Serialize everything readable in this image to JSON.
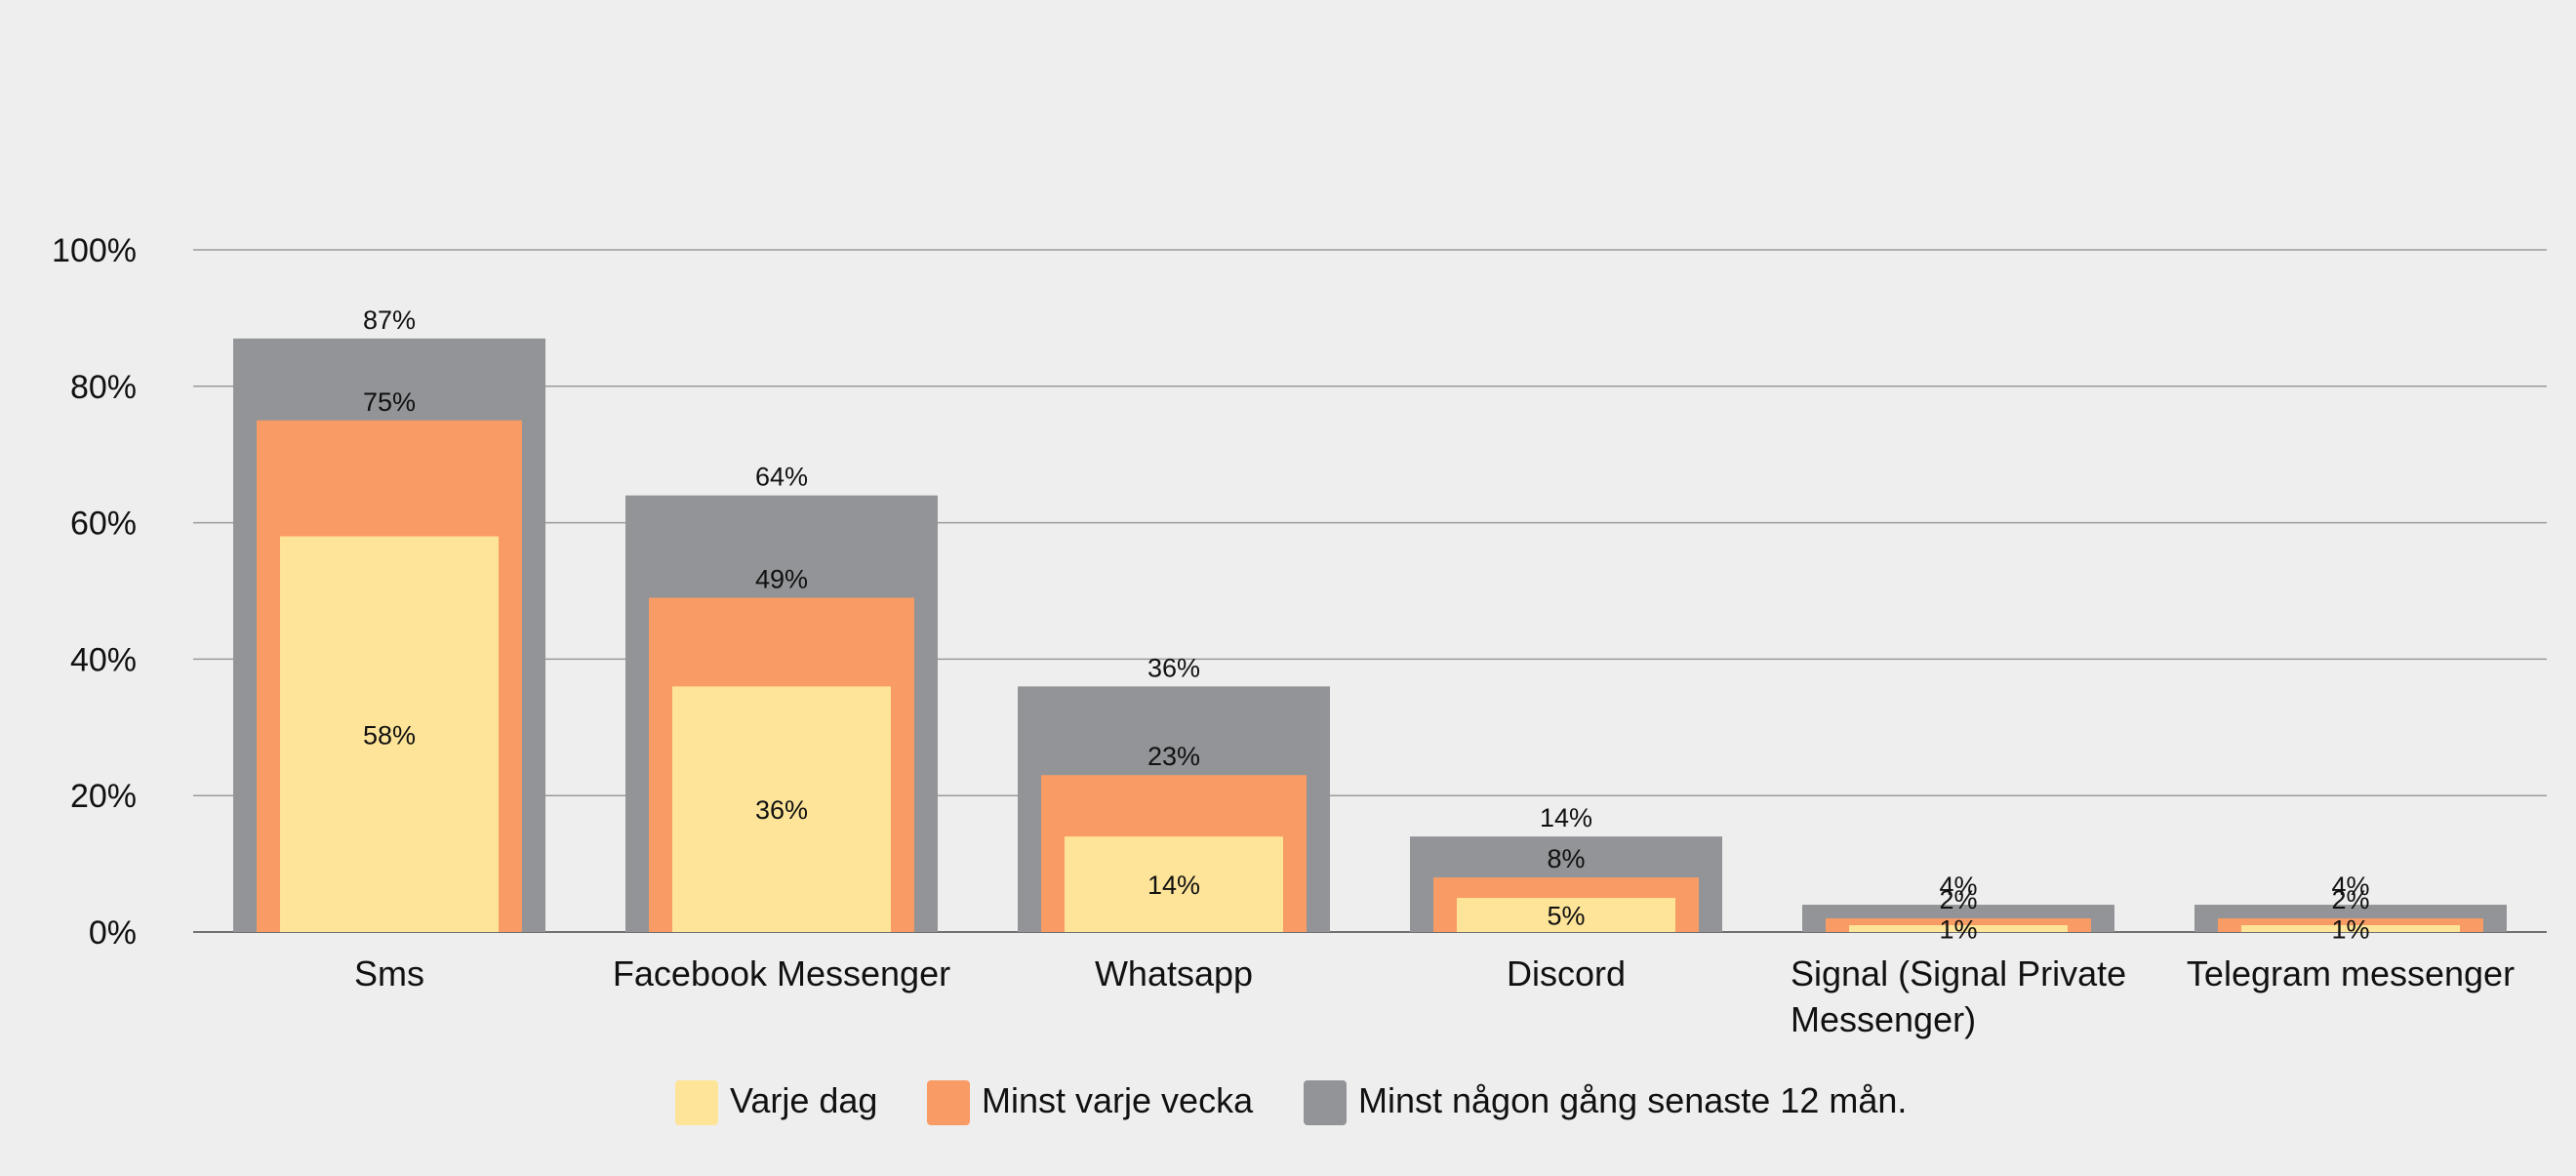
{
  "chart_data": {
    "type": "bar",
    "overlapping": true,
    "categories": [
      [
        "Sms"
      ],
      [
        "Facebook Messenger"
      ],
      [
        "Whatsapp"
      ],
      [
        "Discord"
      ],
      [
        "Signal (Signal Private",
        "Messenger)"
      ],
      [
        "Telegram messenger"
      ]
    ],
    "series": [
      {
        "name": "Minst någon gång senaste 12 mån.",
        "values": [
          87,
          64,
          36,
          14,
          4,
          4
        ],
        "color": "#929497"
      },
      {
        "name": "Minst varje vecka",
        "values": [
          75,
          49,
          23,
          8,
          2,
          2
        ],
        "color": "#f99b65"
      },
      {
        "name": "Varje dag",
        "values": [
          58,
          36,
          14,
          5,
          1,
          1
        ],
        "color": "#fde498"
      }
    ],
    "value_format": "{v}%",
    "ylim": [
      0,
      100
    ],
    "yticks": [
      0,
      20,
      40,
      60,
      80,
      100
    ],
    "ytick_labels": [
      "0%",
      "20%",
      "40%",
      "60%",
      "80%",
      "100%"
    ],
    "grid": true,
    "legend_position": "bottom",
    "legend_order": [
      "Varje dag",
      "Minst varje vecka",
      "Minst någon gång senaste 12 mån."
    ],
    "title": "",
    "xlabel": "",
    "ylabel": ""
  }
}
